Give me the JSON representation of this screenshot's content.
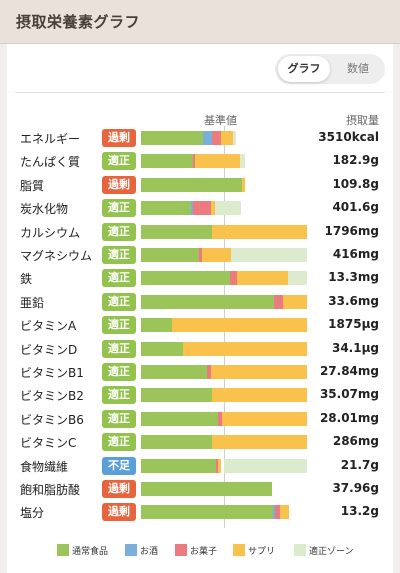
{
  "header": {
    "title": "摂取栄養素グラフ"
  },
  "toggle": {
    "graph_label": "グラフ",
    "number_label": "数値",
    "selected": "graph"
  },
  "columns": {
    "standard": "基準値",
    "intake": "摂取量"
  },
  "colors": {
    "normal": "#9bc45a",
    "alcohol": "#7aaedc",
    "snack": "#ec7b7f",
    "supplement": "#f8c24c",
    "zone": "#dceacd",
    "badge_excess": "#e8643c",
    "badge_ok": "#93c24e",
    "badge_short": "#5a9fd8"
  },
  "badges": {
    "excess": "過剰",
    "ok": "適正",
    "short": "不足"
  },
  "chart_data": {
    "type": "bar",
    "stacked": true,
    "orientation": "horizontal",
    "x_unit": "percent of standard",
    "xlim": [
      0,
      200
    ],
    "reference": 100,
    "series_keys": [
      "normal",
      "alcohol",
      "snack",
      "supplement"
    ],
    "rows": [
      {
        "name": "エネルギー",
        "status": "excess",
        "value": "3510kcal",
        "zone": [
          86,
          114
        ],
        "parts": {
          "normal": 75,
          "alcohol": 11,
          "snack": 10,
          "supplement": 15
        }
      },
      {
        "name": "たんぱく質",
        "status": "ok",
        "value": "182.9g",
        "zone": [
          65,
          125
        ],
        "parts": {
          "normal": 63,
          "alcohol": 0,
          "snack": 2,
          "supplement": 54
        }
      },
      {
        "name": "脂質",
        "status": "excess",
        "value": "109.8g",
        "zone": [
          82,
          122
        ],
        "parts": {
          "normal": 122,
          "alcohol": 0,
          "snack": 0,
          "supplement": 3
        }
      },
      {
        "name": "炭水化物",
        "status": "ok",
        "value": "401.6g",
        "zone": [
          77,
          120
        ],
        "parts": {
          "normal": 60,
          "alcohol": 3,
          "snack": 21,
          "supplement": 5
        }
      },
      {
        "name": "カルシウム",
        "status": "ok",
        "value": "1796mg",
        "zone": [
          86,
          200
        ],
        "parts": {
          "normal": 85,
          "alcohol": 0,
          "snack": 0,
          "supplement": 115
        }
      },
      {
        "name": "マグネシウム",
        "status": "ok",
        "value": "416mg",
        "zone": [
          72,
          200
        ],
        "parts": {
          "normal": 70,
          "alcohol": 0,
          "snack": 3,
          "supplement": 35
        }
      },
      {
        "name": "鉄",
        "status": "ok",
        "value": "13.3mg",
        "zone": [
          108,
          200
        ],
        "parts": {
          "normal": 107,
          "alcohol": 0,
          "snack": 9,
          "supplement": 61
        }
      },
      {
        "name": "亜鉛",
        "status": "ok",
        "value": "33.6mg",
        "zone": [
          100,
          200
        ],
        "parts": {
          "normal": 160,
          "alcohol": 0,
          "snack": 11,
          "supplement": 29
        }
      },
      {
        "name": "ビタミンA",
        "status": "ok",
        "value": "1875μg",
        "zone": [
          100,
          200
        ],
        "parts": {
          "normal": 37,
          "alcohol": 0,
          "snack": 0,
          "supplement": 163
        }
      },
      {
        "name": "ビタミンD",
        "status": "ok",
        "value": "34.1μg",
        "zone": [
          100,
          200
        ],
        "parts": {
          "normal": 50,
          "alcohol": 0,
          "snack": 0,
          "supplement": 150
        }
      },
      {
        "name": "ビタミンB1",
        "status": "ok",
        "value": "27.84mg",
        "zone": [
          100,
          200
        ],
        "parts": {
          "normal": 79,
          "alcohol": 0,
          "snack": 5,
          "supplement": 116
        }
      },
      {
        "name": "ビタミンB2",
        "status": "ok",
        "value": "35.07mg",
        "zone": [
          100,
          200
        ],
        "parts": {
          "normal": 86,
          "alcohol": 0,
          "snack": 0,
          "supplement": 114
        }
      },
      {
        "name": "ビタミンB6",
        "status": "ok",
        "value": "28.01mg",
        "zone": [
          100,
          200
        ],
        "parts": {
          "normal": 93,
          "alcohol": 0,
          "snack": 5,
          "supplement": 102
        }
      },
      {
        "name": "ビタミンC",
        "status": "ok",
        "value": "286mg",
        "zone": [
          100,
          200
        ],
        "parts": {
          "normal": 86,
          "alcohol": 0,
          "snack": 0,
          "supplement": 114
        }
      },
      {
        "name": "食物繊維",
        "status": "short",
        "value": "21.7g",
        "zone": [
          100,
          200
        ],
        "parts": {
          "normal": 90,
          "alcohol": 0,
          "snack": 3,
          "supplement": 3
        }
      },
      {
        "name": "飽和脂肪酸",
        "status": "excess",
        "value": "37.96g",
        "zone": [
          0,
          100
        ],
        "parts": {
          "normal": 158,
          "alcohol": 0,
          "snack": 0,
          "supplement": 0
        }
      },
      {
        "name": "塩分",
        "status": "excess",
        "value": "13.2g",
        "zone": [
          0,
          100
        ],
        "parts": {
          "normal": 159,
          "alcohol": 3,
          "snack": 5,
          "supplement": 11
        }
      }
    ]
  },
  "legend": [
    {
      "key": "normal",
      "label": "通常食品"
    },
    {
      "key": "alcohol",
      "label": "お酒"
    },
    {
      "key": "snack",
      "label": "お菓子"
    },
    {
      "key": "supplement",
      "label": "サプリ"
    },
    {
      "key": "zone",
      "label": "適正ゾーン"
    }
  ]
}
